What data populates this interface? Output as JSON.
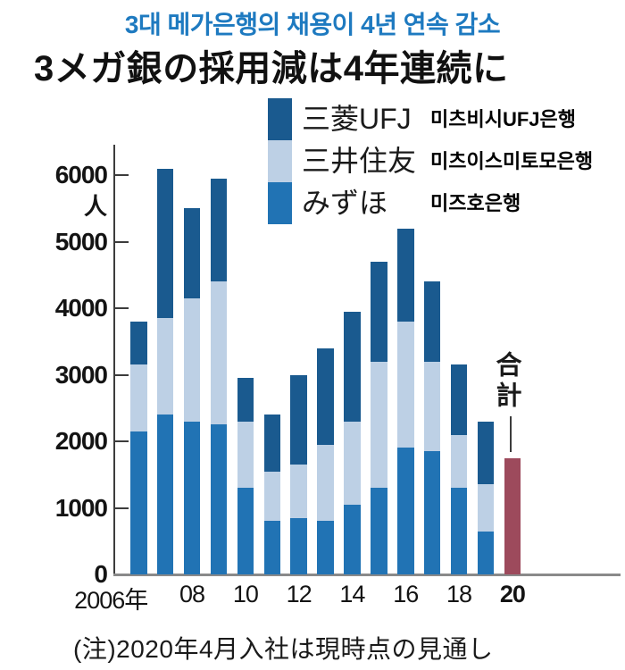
{
  "header": {
    "title_ko": "3대 메가은행의 채용이 4년 연속 감소",
    "title_ko_color": "#1e7ac0",
    "title_ja": "3メガ銀の採用減は4年連続に"
  },
  "legend": {
    "items": [
      {
        "label_ja": "三菱UFJ",
        "label_ko": "미츠비시UFJ은행",
        "color": "#1a5a8f"
      },
      {
        "label_ja": "三井住友",
        "label_ko": "미츠이스미토모은행",
        "color": "#bdd0e5"
      },
      {
        "label_ja": "みずほ",
        "label_ko": "미즈호은행",
        "color": "#2173b4"
      }
    ]
  },
  "chart_data": {
    "type": "bar",
    "stacked": true,
    "title": "3メガ銀の採用減は4年連続に",
    "unit_label": "人",
    "ylabel": "人",
    "xlabel": "",
    "ylim": [
      0,
      6400
    ],
    "yticks": [
      0,
      1000,
      2000,
      3000,
      4000,
      5000,
      6000
    ],
    "grid": false,
    "legend_position": "top",
    "categories": [
      2006,
      2007,
      2008,
      2009,
      2010,
      2011,
      2012,
      2013,
      2014,
      2015,
      2016,
      2017,
      2018,
      2019,
      2020
    ],
    "x_tick_labels": [
      "2006年",
      "08",
      "10",
      "12",
      "14",
      "16",
      "18",
      "20"
    ],
    "series": [
      {
        "name": "みずほ",
        "color": "#2173b4",
        "values": [
          2150,
          2400,
          2300,
          2250,
          1300,
          800,
          850,
          800,
          1050,
          1300,
          1900,
          1850,
          1300,
          650,
          null
        ]
      },
      {
        "name": "三井住友",
        "color": "#bdd0e5",
        "values": [
          1000,
          1450,
          1850,
          2150,
          1000,
          750,
          800,
          1150,
          1250,
          1900,
          1900,
          1350,
          800,
          700,
          null
        ]
      },
      {
        "name": "三菱UFJ",
        "color": "#1a5a8f",
        "values": [
          650,
          2250,
          1350,
          1550,
          650,
          850,
          1350,
          1450,
          1650,
          1500,
          1400,
          1200,
          1050,
          950,
          null
        ]
      }
    ],
    "total_2020": {
      "label": "合計",
      "year": 2020,
      "value": 1750,
      "color": "#9d4a5c"
    }
  },
  "footnote": "(注)2020年4月入社は現時点の見通し"
}
